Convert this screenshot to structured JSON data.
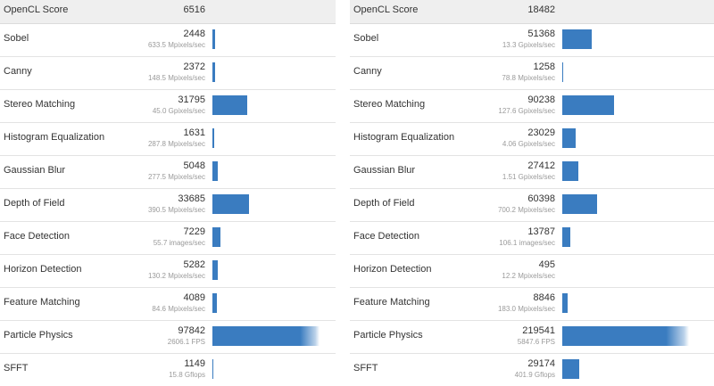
{
  "left": {
    "header": {
      "name": "OpenCL Score",
      "score": "6516"
    },
    "max_score": 97842,
    "rows": [
      {
        "name": "Sobel",
        "score": 2448,
        "score_text": "2448",
        "rate": "633.5 Mpixels/sec"
      },
      {
        "name": "Canny",
        "score": 2372,
        "score_text": "2372",
        "rate": "148.5 Mpixels/sec"
      },
      {
        "name": "Stereo Matching",
        "score": 31795,
        "score_text": "31795",
        "rate": "45.0 Gpixels/sec"
      },
      {
        "name": "Histogram Equalization",
        "score": 1631,
        "score_text": "1631",
        "rate": "287.8 Mpixels/sec"
      },
      {
        "name": "Gaussian Blur",
        "score": 5048,
        "score_text": "5048",
        "rate": "277.5 Mpixels/sec"
      },
      {
        "name": "Depth of Field",
        "score": 33685,
        "score_text": "33685",
        "rate": "390.5 Mpixels/sec"
      },
      {
        "name": "Face Detection",
        "score": 7229,
        "score_text": "7229",
        "rate": "55.7 images/sec"
      },
      {
        "name": "Horizon Detection",
        "score": 5282,
        "score_text": "5282",
        "rate": "130.2 Mpixels/sec"
      },
      {
        "name": "Feature Matching",
        "score": 4089,
        "score_text": "4089",
        "rate": "84.6 Mpixels/sec"
      },
      {
        "name": "Particle Physics",
        "score": 97842,
        "score_text": "97842",
        "rate": "2606.1 FPS"
      },
      {
        "name": "SFFT",
        "score": 1149,
        "score_text": "1149",
        "rate": "15.8 Gflops"
      }
    ]
  },
  "right": {
    "header": {
      "name": "OpenCL Score",
      "score": "18482"
    },
    "max_score": 219541,
    "rows": [
      {
        "name": "Sobel",
        "score": 51368,
        "score_text": "51368",
        "rate": "13.3 Gpixels/sec"
      },
      {
        "name": "Canny",
        "score": 1258,
        "score_text": "1258",
        "rate": "78.8 Mpixels/sec"
      },
      {
        "name": "Stereo Matching",
        "score": 90238,
        "score_text": "90238",
        "rate": "127.6 Gpixels/sec"
      },
      {
        "name": "Histogram Equalization",
        "score": 23029,
        "score_text": "23029",
        "rate": "4.06 Gpixels/sec"
      },
      {
        "name": "Gaussian Blur",
        "score": 27412,
        "score_text": "27412",
        "rate": "1.51 Gpixels/sec"
      },
      {
        "name": "Depth of Field",
        "score": 60398,
        "score_text": "60398",
        "rate": "700.2 Mpixels/sec"
      },
      {
        "name": "Face Detection",
        "score": 13787,
        "score_text": "13787",
        "rate": "106.1 images/sec"
      },
      {
        "name": "Horizon Detection",
        "score": 495,
        "score_text": "495",
        "rate": "12.2 Mpixels/sec"
      },
      {
        "name": "Feature Matching",
        "score": 8846,
        "score_text": "8846",
        "rate": "183.0 Mpixels/sec"
      },
      {
        "name": "Particle Physics",
        "score": 219541,
        "score_text": "219541",
        "rate": "5847.6 FPS"
      },
      {
        "name": "SFFT",
        "score": 29174,
        "score_text": "29174",
        "rate": "401.9 Gflops"
      }
    ]
  },
  "colors": {
    "bar": "#3a7cc0",
    "header_bg": "#efefef",
    "sub_text": "#9a9a9a"
  }
}
